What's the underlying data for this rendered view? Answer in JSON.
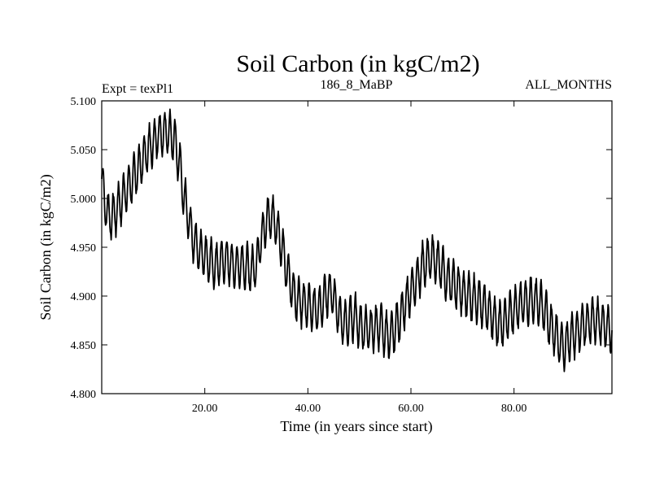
{
  "chart_data": {
    "type": "line",
    "title": "Soil Carbon (in kgC/m2)",
    "subtitle_left": "Expt = texPl1",
    "subtitle_center": "186_8_MaBP",
    "subtitle_right": "ALL_MONTHS",
    "xlabel": "Time (in years since start)",
    "ylabel": "Soil Carbon (in kgC/m2)",
    "xlim": [
      0,
      99
    ],
    "ylim": [
      4.8,
      5.1
    ],
    "xticks": [
      20,
      40,
      60,
      80
    ],
    "xtick_labels": [
      "20.00",
      "40.00",
      "60.00",
      "80.00"
    ],
    "yticks": [
      4.8,
      4.85,
      4.9,
      4.95,
      5.0,
      5.05,
      5.1
    ],
    "ytick_labels": [
      "4.800",
      "4.850",
      "4.900",
      "4.950",
      "5.000",
      "5.050",
      "5.100"
    ],
    "grid": false,
    "line_color": "#000000",
    "series": [
      {
        "x": [
          0,
          1,
          2,
          3,
          4,
          5,
          6,
          7,
          8,
          9,
          10,
          11,
          12,
          13,
          14,
          15,
          16,
          17,
          18,
          19,
          20,
          21,
          22,
          23,
          24,
          25,
          26,
          27,
          28,
          29,
          30,
          31,
          32,
          33,
          34,
          35,
          36,
          37,
          38,
          39,
          40,
          41,
          42,
          43,
          44,
          45,
          46,
          47,
          48,
          49,
          50,
          51,
          52,
          53,
          54,
          55,
          56,
          57,
          58,
          59,
          60,
          61,
          62,
          63,
          64,
          65,
          66,
          67,
          68,
          69,
          70,
          71,
          72,
          73,
          74,
          75,
          76,
          77,
          78,
          79,
          80,
          81,
          82,
          83,
          84,
          85,
          86,
          87,
          88,
          89,
          90,
          91,
          92,
          93,
          94,
          95,
          96,
          97,
          98,
          99
        ],
        "annual_mean": [
          5.02,
          4.985,
          4.98,
          4.99,
          5.0,
          5.01,
          5.018,
          5.028,
          5.04,
          5.05,
          5.058,
          5.065,
          5.068,
          5.066,
          5.062,
          5.04,
          5.0,
          4.975,
          4.955,
          4.945,
          4.94,
          4.935,
          4.93,
          4.935,
          4.938,
          4.935,
          4.93,
          4.932,
          4.93,
          4.925,
          4.93,
          4.96,
          4.978,
          4.982,
          4.97,
          4.95,
          4.925,
          4.905,
          4.895,
          4.893,
          4.89,
          4.888,
          4.885,
          4.895,
          4.905,
          4.9,
          4.88,
          4.87,
          4.875,
          4.88,
          4.87,
          4.865,
          4.865,
          4.868,
          4.87,
          4.862,
          4.858,
          4.868,
          4.88,
          4.895,
          4.905,
          4.915,
          4.928,
          4.935,
          4.94,
          4.935,
          4.928,
          4.918,
          4.912,
          4.91,
          4.905,
          4.9,
          4.898,
          4.895,
          4.89,
          4.885,
          4.878,
          4.87,
          4.872,
          4.88,
          4.885,
          4.89,
          4.893,
          4.895,
          4.897,
          4.892,
          4.885,
          4.87,
          4.862,
          4.848,
          4.85,
          4.858,
          4.862,
          4.868,
          4.872,
          4.875,
          4.875,
          4.872,
          4.868,
          4.865
        ],
        "seasonal_amplitude": 0.022,
        "samples_per_year": 12
      }
    ]
  }
}
